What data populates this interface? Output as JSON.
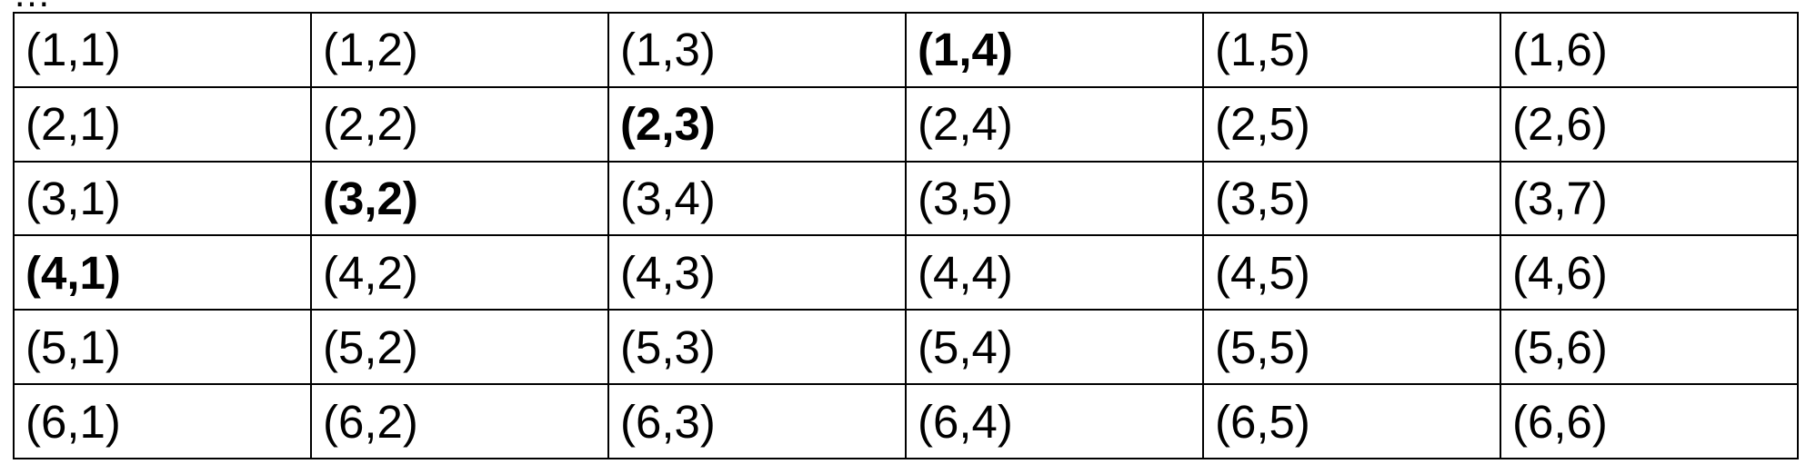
{
  "colors": {
    "default": "#000000",
    "red": "#ff0000",
    "blue": "#0000ff",
    "purple": "#800080"
  },
  "top_fragment": "…",
  "table": {
    "rows": [
      [
        {
          "text": "(1,1)",
          "style": "default"
        },
        {
          "text": "(1,2)",
          "style": "default"
        },
        {
          "text": "(1,3)",
          "style": "default"
        },
        {
          "text": "(1,4)",
          "style": "blue"
        },
        {
          "text": "(1,5)",
          "style": "default"
        },
        {
          "text": "(1,6)",
          "style": "default"
        }
      ],
      [
        {
          "text": "(2,1)",
          "style": "red"
        },
        {
          "text": "(2,2)",
          "style": "red"
        },
        {
          "text": "(2,3)",
          "style": "purple"
        },
        {
          "text": "(2,4)",
          "style": "red"
        },
        {
          "text": "(2,5)",
          "style": "red"
        },
        {
          "text": "(2,6)",
          "style": "red"
        }
      ],
      [
        {
          "text": "(3,1)",
          "style": "default"
        },
        {
          "text": "(3,2)",
          "style": "blue"
        },
        {
          "text": "(3,4)",
          "style": "default"
        },
        {
          "text": "(3,5)",
          "style": "default"
        },
        {
          "text": "(3,5)",
          "style": "default"
        },
        {
          "text": "(3,7)",
          "style": "default"
        }
      ],
      [
        {
          "text": "(4,1)",
          "style": "blue"
        },
        {
          "text": "(4,2)",
          "style": "default"
        },
        {
          "text": "(4,3)",
          "style": "default"
        },
        {
          "text": "(4,4)",
          "style": "default"
        },
        {
          "text": "(4,5)",
          "style": "default"
        },
        {
          "text": "(4,6)",
          "style": "default"
        }
      ],
      [
        {
          "text": "(5,1)",
          "style": "default"
        },
        {
          "text": "(5,2)",
          "style": "default"
        },
        {
          "text": "(5,3)",
          "style": "default"
        },
        {
          "text": "(5,4)",
          "style": "default"
        },
        {
          "text": "(5,5)",
          "style": "default"
        },
        {
          "text": "(5,6)",
          "style": "default"
        }
      ],
      [
        {
          "text": "(6,1)",
          "style": "default"
        },
        {
          "text": "(6,2)",
          "style": "default"
        },
        {
          "text": "(6,3)",
          "style": "default"
        },
        {
          "text": "(6,4)",
          "style": "default"
        },
        {
          "text": "(6,5)",
          "style": "default"
        },
        {
          "text": "(6,6)",
          "style": "default"
        }
      ]
    ]
  }
}
